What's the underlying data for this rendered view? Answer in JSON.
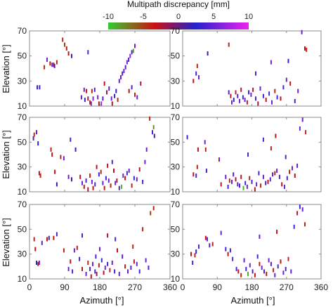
{
  "colorbar": {
    "title": "Multipath discrepancy [mm]",
    "ticks": [
      -10,
      -5,
      0,
      5,
      10
    ],
    "stops": [
      "#33cc33",
      "#cc1111",
      "#2222cc",
      "#ee22ee"
    ]
  },
  "axes": {
    "xlabel": "Azimuth [°]",
    "ylabel": "Elevation [°]",
    "xlim": [
      0,
      360
    ],
    "ylim": [
      10,
      70
    ],
    "xticks": [
      0,
      90,
      180,
      270,
      360
    ],
    "yticks": [
      10,
      30,
      50,
      70
    ]
  },
  "chart_data": [
    {
      "type": "scatter",
      "marker": "short-vertical-dash",
      "row": 1,
      "col": 1,
      "points": [
        [
          20,
          25,
          2
        ],
        [
          26,
          25,
          3
        ],
        [
          38,
          41,
          -4
        ],
        [
          45,
          47,
          5
        ],
        [
          53,
          44,
          -3
        ],
        [
          58,
          43,
          5
        ],
        [
          62,
          43,
          -3
        ],
        [
          64,
          42,
          2
        ],
        [
          70,
          45,
          -4
        ],
        [
          85,
          63,
          -4
        ],
        [
          90,
          59,
          -5
        ],
        [
          95,
          56,
          -4
        ],
        [
          100,
          52,
          -3
        ],
        [
          108,
          50,
          3
        ],
        [
          133,
          17,
          4
        ],
        [
          140,
          23,
          5
        ],
        [
          142,
          15,
          3
        ],
        [
          146,
          22,
          -3
        ],
        [
          150,
          16,
          -2
        ],
        [
          155,
          13,
          -4
        ],
        [
          158,
          12,
          5
        ],
        [
          160,
          22,
          -4
        ],
        [
          163,
          16,
          6
        ],
        [
          167,
          23,
          4
        ],
        [
          175,
          17,
          5
        ],
        [
          178,
          12,
          -2
        ],
        [
          184,
          12,
          7
        ],
        [
          188,
          16,
          4
        ],
        [
          192,
          28,
          -3
        ],
        [
          198,
          21,
          -2
        ],
        [
          204,
          24,
          4
        ],
        [
          210,
          16,
          5
        ],
        [
          212,
          12,
          -3
        ],
        [
          218,
          18,
          2
        ],
        [
          222,
          22,
          3
        ],
        [
          226,
          15,
          -4
        ],
        [
          230,
          30,
          5
        ],
        [
          234,
          33,
          5
        ],
        [
          238,
          36,
          4
        ],
        [
          242,
          38,
          5
        ],
        [
          246,
          41,
          4
        ],
        [
          250,
          45,
          6
        ],
        [
          254,
          47,
          4
        ],
        [
          258,
          50,
          7
        ],
        [
          262,
          53,
          4
        ],
        [
          266,
          54,
          -8
        ],
        [
          270,
          58,
          5
        ],
        [
          255,
          22,
          -3
        ],
        [
          262,
          25,
          4
        ],
        [
          270,
          19,
          -4
        ],
        [
          276,
          17,
          5
        ],
        [
          285,
          28,
          -2
        ],
        [
          150,
          53,
          4
        ]
      ]
    },
    {
      "type": "scatter",
      "marker": "short-vertical-dash",
      "row": 1,
      "col": 2,
      "points": [
        [
          28,
          30,
          -3
        ],
        [
          35,
          36,
          4
        ],
        [
          38,
          42,
          -4
        ],
        [
          42,
          33,
          5
        ],
        [
          65,
          52,
          2
        ],
        [
          120,
          21,
          4
        ],
        [
          125,
          18,
          -3
        ],
        [
          128,
          13,
          5
        ],
        [
          133,
          15,
          3
        ],
        [
          138,
          21,
          -4
        ],
        [
          143,
          18,
          4
        ],
        [
          148,
          14,
          6
        ],
        [
          152,
          23,
          -3
        ],
        [
          157,
          17,
          4
        ],
        [
          162,
          15,
          5
        ],
        [
          168,
          13,
          -4
        ],
        [
          172,
          21,
          3
        ],
        [
          178,
          19,
          5
        ],
        [
          183,
          23,
          -3
        ],
        [
          190,
          16,
          4
        ],
        [
          196,
          12,
          -2
        ],
        [
          202,
          24,
          5
        ],
        [
          210,
          18,
          4
        ],
        [
          217,
          15,
          -3
        ],
        [
          225,
          20,
          4
        ],
        [
          232,
          13,
          5
        ],
        [
          240,
          22,
          -4
        ],
        [
          246,
          17,
          4
        ],
        [
          255,
          16,
          -3
        ],
        [
          262,
          25,
          4
        ],
        [
          270,
          31,
          5
        ],
        [
          280,
          28,
          -3
        ],
        [
          292,
          14,
          4
        ],
        [
          300,
          22,
          5
        ],
        [
          310,
          69,
          5
        ],
        [
          318,
          56,
          -3
        ],
        [
          322,
          55,
          -4
        ],
        [
          190,
          36,
          4
        ],
        [
          230,
          45,
          5
        ],
        [
          275,
          46,
          3
        ],
        [
          120,
          59,
          -4
        ]
      ]
    },
    {
      "type": "scatter",
      "marker": "short-vertical-dash",
      "row": 2,
      "col": 1,
      "points": [
        [
          10,
          53,
          4
        ],
        [
          12,
          56,
          -4
        ],
        [
          18,
          58,
          5
        ],
        [
          22,
          49,
          3
        ],
        [
          25,
          25,
          -3
        ],
        [
          28,
          23,
          -4
        ],
        [
          55,
          44,
          -4
        ],
        [
          58,
          40,
          -3
        ],
        [
          65,
          26,
          -3
        ],
        [
          70,
          16,
          2
        ],
        [
          80,
          38,
          -4
        ],
        [
          88,
          37,
          5
        ],
        [
          100,
          22,
          5
        ],
        [
          108,
          20,
          2
        ],
        [
          118,
          44,
          3
        ],
        [
          130,
          22,
          -3
        ],
        [
          135,
          17,
          5
        ],
        [
          140,
          14,
          -3
        ],
        [
          145,
          19,
          4
        ],
        [
          150,
          12,
          -2
        ],
        [
          155,
          23,
          -4
        ],
        [
          160,
          18,
          5
        ],
        [
          163,
          13,
          -3
        ],
        [
          168,
          16,
          4
        ],
        [
          172,
          30,
          -3
        ],
        [
          178,
          24,
          4
        ],
        [
          183,
          26,
          -4
        ],
        [
          188,
          17,
          5
        ],
        [
          192,
          13,
          -3
        ],
        [
          196,
          21,
          4
        ],
        [
          203,
          19,
          5
        ],
        [
          208,
          15,
          -4
        ],
        [
          212,
          34,
          4
        ],
        [
          216,
          27,
          -3
        ],
        [
          220,
          17,
          5
        ],
        [
          224,
          19,
          -2
        ],
        [
          230,
          13,
          4
        ],
        [
          236,
          14,
          -9
        ],
        [
          240,
          23,
          5
        ],
        [
          245,
          21,
          -3
        ],
        [
          250,
          25,
          4
        ],
        [
          255,
          27,
          5
        ],
        [
          262,
          15,
          -4
        ],
        [
          268,
          21,
          4
        ],
        [
          275,
          20,
          5
        ],
        [
          282,
          28,
          -3
        ],
        [
          290,
          18,
          4
        ],
        [
          296,
          34,
          5
        ],
        [
          300,
          44,
          5
        ],
        [
          308,
          69,
          -4
        ],
        [
          315,
          58,
          4
        ],
        [
          320,
          55,
          3
        ],
        [
          318,
          62,
          -8
        ],
        [
          200,
          31,
          -3
        ],
        [
          105,
          52,
          4
        ]
      ]
    },
    {
      "type": "scatter",
      "marker": "short-vertical-dash",
      "row": 2,
      "col": 2,
      "points": [
        [
          12,
          54,
          4
        ],
        [
          28,
          24,
          -3
        ],
        [
          35,
          23,
          4
        ],
        [
          38,
          30,
          -4
        ],
        [
          40,
          44,
          -3
        ],
        [
          58,
          50,
          5
        ],
        [
          60,
          44,
          -4
        ],
        [
          62,
          27,
          4
        ],
        [
          100,
          16,
          -3
        ],
        [
          112,
          22,
          5
        ],
        [
          118,
          14,
          4
        ],
        [
          122,
          19,
          -4
        ],
        [
          128,
          18,
          5
        ],
        [
          132,
          24,
          4
        ],
        [
          138,
          20,
          -3
        ],
        [
          143,
          16,
          5
        ],
        [
          148,
          15,
          4
        ],
        [
          152,
          22,
          -3
        ],
        [
          158,
          13,
          -9
        ],
        [
          163,
          17,
          4
        ],
        [
          168,
          14,
          5
        ],
        [
          174,
          21,
          -4
        ],
        [
          180,
          18,
          4
        ],
        [
          188,
          12,
          -3
        ],
        [
          192,
          16,
          5
        ],
        [
          198,
          25,
          4
        ],
        [
          203,
          15,
          -4
        ],
        [
          210,
          22,
          5
        ],
        [
          216,
          17,
          4
        ],
        [
          222,
          18,
          -3
        ],
        [
          228,
          20,
          5
        ],
        [
          234,
          24,
          4
        ],
        [
          240,
          25,
          -4
        ],
        [
          245,
          27,
          5
        ],
        [
          252,
          22,
          4
        ],
        [
          258,
          16,
          -3
        ],
        [
          265,
          14,
          5
        ],
        [
          272,
          21,
          4
        ],
        [
          278,
          26,
          -4
        ],
        [
          285,
          29,
          5
        ],
        [
          292,
          23,
          -3
        ],
        [
          298,
          31,
          4
        ],
        [
          305,
          61,
          5
        ],
        [
          312,
          68,
          5
        ],
        [
          320,
          58,
          -4
        ],
        [
          170,
          40,
          4
        ],
        [
          210,
          52,
          4
        ],
        [
          242,
          55,
          -3
        ],
        [
          95,
          36,
          5
        ],
        [
          230,
          45,
          -4
        ],
        [
          268,
          38,
          4
        ]
      ]
    },
    {
      "type": "scatter",
      "marker": "short-vertical-dash",
      "row": 3,
      "col": 1,
      "points": [
        [
          12,
          42,
          -4
        ],
        [
          15,
          34,
          -3
        ],
        [
          18,
          23,
          3
        ],
        [
          22,
          22,
          -4
        ],
        [
          25,
          23,
          5
        ],
        [
          32,
          39,
          4
        ],
        [
          45,
          42,
          -3
        ],
        [
          50,
          43,
          2
        ],
        [
          62,
          43,
          -3
        ],
        [
          70,
          46,
          4
        ],
        [
          88,
          33,
          -4
        ],
        [
          100,
          18,
          5
        ],
        [
          105,
          24,
          -3
        ],
        [
          110,
          16,
          4
        ],
        [
          115,
          33,
          5
        ],
        [
          122,
          35,
          -4
        ],
        [
          128,
          26,
          4
        ],
        [
          135,
          18,
          -3
        ],
        [
          145,
          14,
          5
        ],
        [
          150,
          23,
          -4
        ],
        [
          155,
          18,
          4
        ],
        [
          158,
          12,
          -3
        ],
        [
          162,
          22,
          5
        ],
        [
          168,
          16,
          4
        ],
        [
          172,
          14,
          -2
        ],
        [
          178,
          21,
          -4
        ],
        [
          180,
          34,
          5
        ],
        [
          185,
          25,
          4
        ],
        [
          190,
          15,
          -3
        ],
        [
          194,
          19,
          5
        ],
        [
          200,
          22,
          4
        ],
        [
          206,
          17,
          -4
        ],
        [
          212,
          23,
          5
        ],
        [
          218,
          16,
          4
        ],
        [
          225,
          33,
          -3
        ],
        [
          230,
          14,
          5
        ],
        [
          238,
          28,
          4
        ],
        [
          245,
          20,
          -4
        ],
        [
          252,
          16,
          5
        ],
        [
          260,
          19,
          4
        ],
        [
          268,
          24,
          -3
        ],
        [
          275,
          22,
          5
        ],
        [
          282,
          16,
          4
        ],
        [
          290,
          50,
          -4
        ],
        [
          298,
          25,
          5
        ],
        [
          305,
          19,
          4
        ],
        [
          310,
          63,
          -5
        ],
        [
          318,
          67,
          -4
        ],
        [
          200,
          45,
          -3
        ],
        [
          135,
          45,
          4
        ],
        [
          170,
          28,
          4
        ],
        [
          265,
          36,
          -4
        ],
        [
          220,
          42,
          4
        ]
      ]
    },
    {
      "type": "scatter",
      "marker": "short-vertical-dash",
      "row": 3,
      "col": 2,
      "points": [
        [
          22,
          30,
          -3
        ],
        [
          26,
          23,
          4
        ],
        [
          32,
          29,
          -4
        ],
        [
          35,
          32,
          3
        ],
        [
          42,
          36,
          4
        ],
        [
          60,
          43,
          -3
        ],
        [
          64,
          42,
          5
        ],
        [
          70,
          37,
          4
        ],
        [
          78,
          38,
          -4
        ],
        [
          100,
          47,
          5
        ],
        [
          112,
          34,
          4
        ],
        [
          118,
          30,
          -3
        ],
        [
          124,
          33,
          4
        ],
        [
          130,
          26,
          5
        ],
        [
          140,
          18,
          4
        ],
        [
          145,
          16,
          -3
        ],
        [
          152,
          13,
          -4
        ],
        [
          160,
          25,
          5
        ],
        [
          165,
          18,
          4
        ],
        [
          170,
          14,
          -9
        ],
        [
          175,
          21,
          5
        ],
        [
          182,
          16,
          4
        ],
        [
          188,
          13,
          -3
        ],
        [
          195,
          28,
          4
        ],
        [
          200,
          22,
          -4
        ],
        [
          206,
          19,
          5
        ],
        [
          212,
          16,
          4
        ],
        [
          218,
          14,
          -3
        ],
        [
          224,
          25,
          5
        ],
        [
          230,
          22,
          4
        ],
        [
          236,
          17,
          -4
        ],
        [
          240,
          13,
          5
        ],
        [
          248,
          20,
          4
        ],
        [
          255,
          24,
          -3
        ],
        [
          262,
          15,
          5
        ],
        [
          268,
          18,
          4
        ],
        [
          275,
          26,
          -4
        ],
        [
          282,
          16,
          5
        ],
        [
          290,
          52,
          4
        ],
        [
          298,
          63,
          -3
        ],
        [
          305,
          68,
          4
        ],
        [
          312,
          66,
          5
        ],
        [
          318,
          54,
          -4
        ],
        [
          200,
          44,
          5
        ],
        [
          245,
          48,
          -3
        ]
      ]
    }
  ]
}
